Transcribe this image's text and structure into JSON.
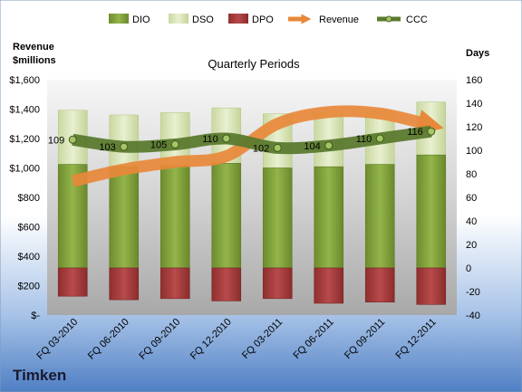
{
  "company": "Timken",
  "chart_data": {
    "type": "bar",
    "title": "Quarterly Periods",
    "ylabel_left": [
      "Revenue",
      "$millions"
    ],
    "ylabel_right": "Days",
    "categories": [
      "FQ 03-2010",
      "FQ 06-2010",
      "FQ 09-2010",
      "FQ 12-2010",
      "FQ 03-2011",
      "FQ 06-2011",
      "FQ 09-2011",
      "FQ 12-2011"
    ],
    "left_axis": {
      "min": 0,
      "max": 1600,
      "step": 200,
      "tick_labels": [
        "$-",
        "$200",
        "$400",
        "$600",
        "$800",
        "$1,000",
        "$1,200",
        "$1,400",
        "$1,600"
      ]
    },
    "right_axis": {
      "min": -40,
      "max": 160,
      "step": 20,
      "tick_labels": [
        "-40",
        "-20",
        "0",
        "20",
        "40",
        "60",
        "80",
        "100",
        "120",
        "140",
        "160"
      ]
    },
    "series": [
      {
        "name": "DIO",
        "kind": "bar",
        "axis": "right",
        "color": "#7a9a3a",
        "values": [
          88,
          86,
          87,
          89,
          85,
          86,
          88,
          96
        ]
      },
      {
        "name": "DSO",
        "kind": "bar",
        "axis": "right",
        "color": "#d6e3b3",
        "values": [
          46,
          44,
          45,
          47,
          46,
          46,
          45,
          45
        ]
      },
      {
        "name": "DPO",
        "kind": "bar",
        "axis": "right",
        "color": "#a23b3b",
        "values": [
          -24,
          -27,
          -26,
          -28,
          -26,
          -30,
          -29,
          -31
        ]
      },
      {
        "name": "Revenue",
        "kind": "line",
        "axis": "left",
        "color": "#e8883a",
        "values": [
          910,
          990,
          1040,
          1080,
          1300,
          1380,
          1370,
          1290
        ]
      },
      {
        "name": "CCC",
        "kind": "line",
        "axis": "right",
        "color": "#5b7a2e",
        "values": [
          109,
          103,
          105,
          110,
          102,
          104,
          110,
          116
        ],
        "labels": [
          "109",
          "103",
          "105",
          "110",
          "102",
          "104",
          "110",
          "116"
        ]
      }
    ],
    "legend": [
      "DIO",
      "DSO",
      "DPO",
      "Revenue",
      "CCC"
    ],
    "legend_position": "top",
    "grid": false
  }
}
